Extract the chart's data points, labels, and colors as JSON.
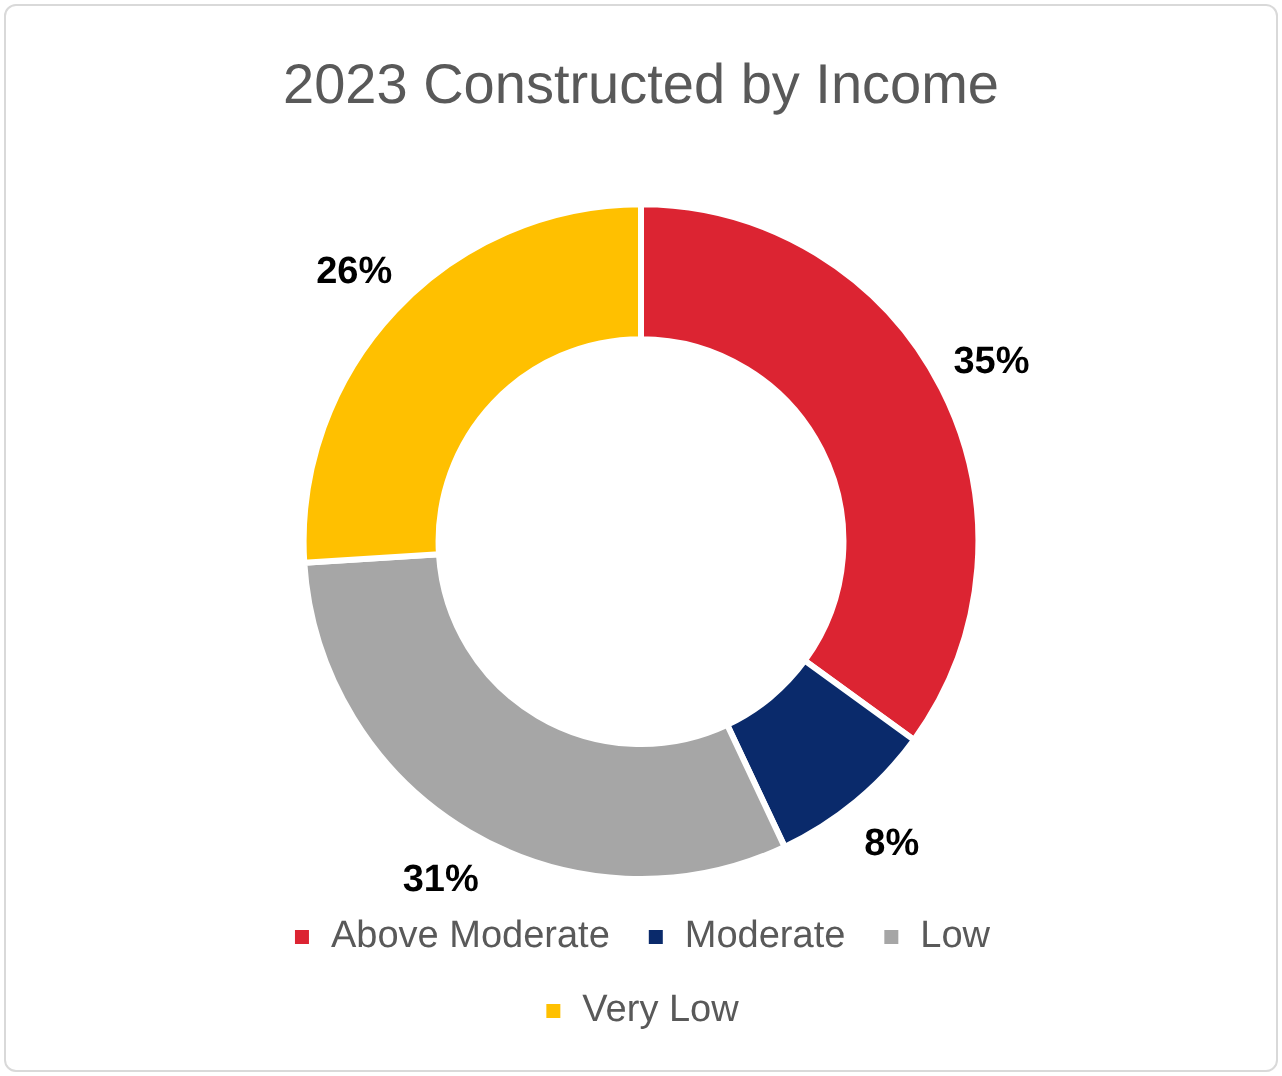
{
  "chart_data": {
    "type": "donut",
    "title": "2023 Constructed by Income",
    "categories": [
      "Above Moderate",
      "Moderate",
      "Low",
      "Very Low"
    ],
    "values": [
      35,
      8,
      31,
      26
    ],
    "value_labels": [
      "35%",
      "8%",
      "31%",
      "26%"
    ],
    "colors": [
      "#dc2432",
      "#0a2a6b",
      "#a6a6a6",
      "#ffc000"
    ],
    "legend": "bottom"
  }
}
